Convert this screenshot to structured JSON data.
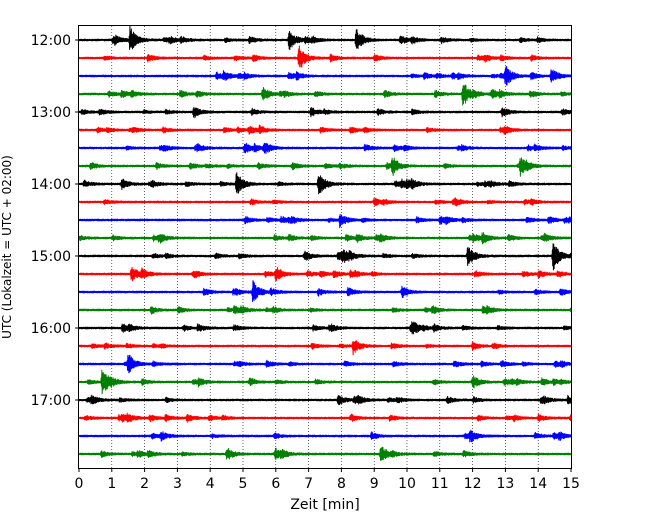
{
  "chart_data": {
    "type": "line",
    "title": "",
    "xlabel": "Zeit  [min]",
    "ylabel": "UTC (Lokalzeit = UTC + 02:00)",
    "xlim": [
      0,
      15
    ],
    "x_ticks": [
      "0",
      "1",
      "2",
      "3",
      "4",
      "5",
      "6",
      "7",
      "8",
      "9",
      "10",
      "11",
      "12",
      "13",
      "14",
      "15"
    ],
    "y_tick_labels": [
      "12:00",
      "13:00",
      "14:00",
      "15:00",
      "16:00",
      "17:00"
    ],
    "grid": "vertical dotted lines at each minute",
    "trace_colors": [
      "#000000",
      "#ff0000",
      "#0000ff",
      "#008000"
    ],
    "traces": [
      {
        "start": "12:00",
        "color": "#000000",
        "events": [
          [
            1.55,
            2.2
          ],
          [
            6.4,
            1.2
          ],
          [
            8.45,
            2.0
          ],
          [
            9.8,
            0.8
          ]
        ]
      },
      {
        "start": "12:15",
        "color": "#ff0000",
        "events": [
          [
            6.7,
            2.2
          ],
          [
            2.1,
            0.6
          ]
        ]
      },
      {
        "start": "12:30",
        "color": "#0000ff",
        "events": [
          [
            13.0,
            1.8
          ],
          [
            14.4,
            1.3
          ],
          [
            4.4,
            0.8
          ]
        ]
      },
      {
        "start": "12:45",
        "color": "#008000",
        "events": [
          [
            5.6,
            1.2
          ],
          [
            11.7,
            2.2
          ]
        ]
      },
      {
        "start": "13:00",
        "color": "#000000",
        "events": [
          [
            3.5,
            1.0
          ],
          [
            12.9,
            0.8
          ]
        ]
      },
      {
        "start": "13:15",
        "color": "#ff0000",
        "events": [
          [
            5.5,
            0.6
          ]
        ]
      },
      {
        "start": "13:30",
        "color": "#0000ff",
        "events": [
          [
            9.6,
            0.5
          ]
        ]
      },
      {
        "start": "13:45",
        "color": "#008000",
        "events": [
          [
            9.55,
            1.5
          ],
          [
            13.45,
            1.5
          ],
          [
            6.5,
            0.6
          ]
        ]
      },
      {
        "start": "14:00",
        "color": "#000000",
        "events": [
          [
            4.8,
            2.0
          ],
          [
            7.3,
            1.8
          ],
          [
            1.3,
            0.9
          ]
        ]
      },
      {
        "start": "14:15",
        "color": "#ff0000",
        "events": [
          [
            9.0,
            0.6
          ]
        ]
      },
      {
        "start": "14:30",
        "color": "#0000ff",
        "events": [
          [
            7.95,
            1.2
          ],
          [
            11.0,
            0.7
          ]
        ]
      },
      {
        "start": "14:45",
        "color": "#008000",
        "events": [
          [
            12.3,
            0.8
          ]
        ]
      },
      {
        "start": "15:00",
        "color": "#000000",
        "events": [
          [
            11.85,
            1.8
          ],
          [
            14.45,
            2.5
          ],
          [
            7.9,
            0.7
          ]
        ]
      },
      {
        "start": "15:15",
        "color": "#ff0000",
        "events": [
          [
            1.6,
            1.3
          ],
          [
            6.0,
            1.2
          ]
        ]
      },
      {
        "start": "15:30",
        "color": "#0000ff",
        "events": [
          [
            5.3,
            1.8
          ],
          [
            8.2,
            0.7
          ]
        ]
      },
      {
        "start": "15:45",
        "color": "#008000",
        "events": [
          [
            2.2,
            0.6
          ]
        ]
      },
      {
        "start": "16:00",
        "color": "#000000",
        "events": [
          [
            10.1,
            0.6
          ]
        ]
      },
      {
        "start": "16:15",
        "color": "#ff0000",
        "events": [
          [
            8.35,
            1.0
          ],
          [
            12.0,
            0.6
          ]
        ]
      },
      {
        "start": "16:30",
        "color": "#0000ff",
        "events": [
          [
            1.5,
            1.6
          ]
        ]
      },
      {
        "start": "16:45",
        "color": "#008000",
        "events": [
          [
            0.7,
            2.0
          ],
          [
            5.2,
            0.7
          ]
        ]
      },
      {
        "start": "17:00",
        "color": "#000000",
        "events": [
          [
            7.9,
            0.8
          ],
          [
            14.9,
            0.7
          ]
        ]
      },
      {
        "start": "17:15",
        "color": "#ff0000",
        "events": [
          [
            3.3,
            0.6
          ]
        ]
      },
      {
        "start": "17:30",
        "color": "#0000ff",
        "events": [
          [
            2.5,
            0.7
          ]
        ]
      },
      {
        "start": "17:45",
        "color": "#008000",
        "events": [
          [
            9.2,
            1.5
          ],
          [
            4.5,
            0.7
          ]
        ]
      }
    ]
  }
}
